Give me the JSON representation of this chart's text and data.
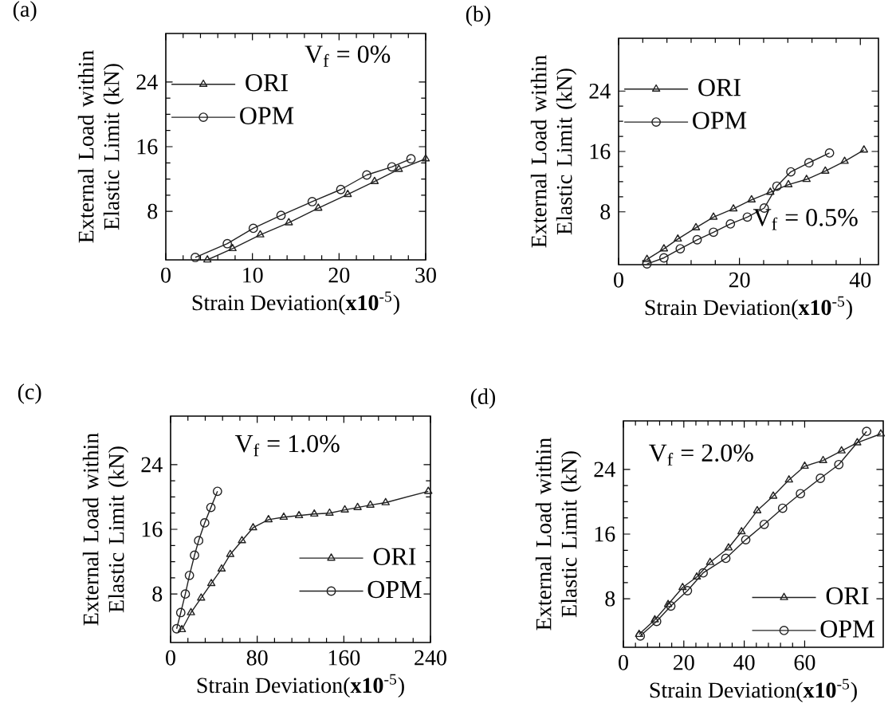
{
  "chart_data": [
    {
      "type": "line",
      "title": "(a)",
      "xlabel": "Strain Deviation(**x10**$^{-5}$)",
      "ylabel": "External Load within Elastic Limit (kN)",
      "annotations": [
        "V$_{f}$ = 0%"
      ],
      "xlim": [
        0,
        30
      ],
      "xticks": [
        0,
        10,
        20,
        30
      ],
      "ylim": [
        2,
        30
      ],
      "yticks": [
        8,
        16,
        24
      ],
      "legend": "top left",
      "series": [
        {
          "name": "ORI",
          "color": "#222222",
          "marker": "triangle",
          "x": [
            4.8,
            7.7,
            10.9,
            14.2,
            17.6,
            21.0,
            24.1,
            26.9,
            30
          ],
          "values": [
            2.0,
            3.4,
            5.1,
            6.6,
            8.4,
            10.1,
            11.7,
            13.2,
            14.5
          ]
        },
        {
          "name": "OPM",
          "color": "#222222",
          "marker": "circle",
          "x": [
            3.4,
            7.1,
            10.1,
            13.3,
            16.9,
            20.2,
            23.2,
            26.1,
            28.3
          ],
          "values": [
            2.3,
            4.0,
            5.9,
            7.5,
            9.2,
            10.7,
            12.5,
            13.5,
            14.5
          ]
        }
      ]
    },
    {
      "type": "line",
      "title": "(b)",
      "xlabel": "Strain Deviation(**x10**$^{-5}$)",
      "ylabel": "External Load within Elastic Limit (kN)",
      "annotations": [
        "V$_{f}$ = 0.5%"
      ],
      "xlim": [
        0,
        43
      ],
      "xticks": [
        0,
        20,
        40
      ],
      "ylim": [
        1,
        31
      ],
      "yticks": [
        8,
        16,
        24
      ],
      "legend": "top left",
      "series": [
        {
          "name": "ORI",
          "color": "#222222",
          "marker": "triangle",
          "x": [
            4.7,
            7.5,
            9.8,
            12.8,
            15.7,
            19.0,
            22.0,
            25.1,
            28.1,
            31.1,
            34.2,
            37.4,
            40.6
          ],
          "values": [
            1.7,
            3.1,
            4.4,
            5.9,
            7.3,
            8.4,
            9.6,
            10.6,
            11.6,
            12.3,
            13.4,
            14.7,
            16.2
          ]
        },
        {
          "name": "OPM",
          "color": "#222222",
          "marker": "circle",
          "x": [
            4.7,
            7.5,
            10.2,
            13.0,
            15.7,
            18.5,
            21.3,
            24.1,
            26.2,
            28.5,
            31.5,
            34.9
          ],
          "values": [
            1.1,
            1.9,
            3.1,
            4.3,
            5.3,
            6.4,
            7.3,
            8.5,
            11.4,
            13.3,
            14.5,
            15.8
          ]
        }
      ]
    },
    {
      "type": "line",
      "title": "(c)",
      "xlabel": "Strain Deviation(**x10**$^{-5}$)",
      "ylabel": "External Load within Elastic Limit (kN)",
      "annotations": [
        "V$_{f}$ = 1.0%"
      ],
      "xlim": [
        0,
        240
      ],
      "xticks": [
        0,
        80,
        160,
        240
      ],
      "ylim": [
        2,
        30
      ],
      "yticks": [
        8,
        16,
        24
      ],
      "legend": "right",
      "series": [
        {
          "name": "ORI",
          "color": "#222222",
          "marker": "triangle",
          "x": [
            10.4,
            18.8,
            28.2,
            37.6,
            47.1,
            55.1,
            65.9,
            76.2,
            90.4,
            104.5,
            118.6,
            132.7,
            146.8,
            160.9,
            172.7,
            184.5,
            198.6,
            238
          ],
          "values": [
            3.6,
            5.7,
            7.5,
            9.3,
            11.1,
            12.9,
            14.6,
            16.2,
            17.2,
            17.5,
            17.7,
            17.9,
            18.0,
            18.4,
            18.7,
            19.0,
            19.3,
            20.7
          ]
        },
        {
          "name": "OPM",
          "color": "#222222",
          "marker": "circle",
          "x": [
            5.6,
            9.4,
            13.6,
            17.4,
            22.1,
            25.9,
            31.5,
            37.2,
            43.3
          ],
          "values": [
            3.7,
            5.7,
            8.0,
            10.3,
            12.8,
            14.6,
            16.8,
            18.7,
            20.7
          ]
        }
      ]
    },
    {
      "type": "line",
      "title": "(d)",
      "xlabel": "Strain Deviation(**x10**$^{-5}$)",
      "ylabel": "External Load within Elastic Limit (kN)",
      "annotations": [
        "V$_{f}$ = 2.0%"
      ],
      "xlim": [
        0,
        86
      ],
      "xticks": [
        0,
        20,
        40,
        60
      ],
      "ylim": [
        2,
        30
      ],
      "yticks": [
        8,
        16,
        24
      ],
      "legend": "bottom right",
      "series": [
        {
          "name": "ORI",
          "color": "#222222",
          "marker": "triangle",
          "x": [
            5.2,
            10.4,
            14.8,
            19.6,
            24.3,
            28.7,
            34.8,
            39.1,
            44.3,
            49.6,
            54.8,
            60.0,
            66.1,
            72.2,
            77.4,
            85.2
          ],
          "values": [
            3.6,
            5.4,
            7.3,
            9.4,
            10.7,
            12.5,
            14.3,
            16.3,
            18.9,
            20.7,
            22.7,
            24.4,
            25.1,
            26.3,
            27.3,
            28.4
          ]
        },
        {
          "name": "OPM",
          "color": "#222222",
          "marker": "circle",
          "x": [
            5.6,
            11.0,
            15.7,
            21.2,
            26.4,
            33.9,
            40.5,
            46.6,
            52.7,
            58.6,
            65.2,
            71.3,
            80.5
          ],
          "values": [
            3.4,
            5.2,
            7.1,
            9.0,
            11.2,
            13.0,
            15.3,
            17.2,
            19.2,
            21.0,
            22.9,
            24.6,
            28.7
          ]
        }
      ]
    }
  ]
}
